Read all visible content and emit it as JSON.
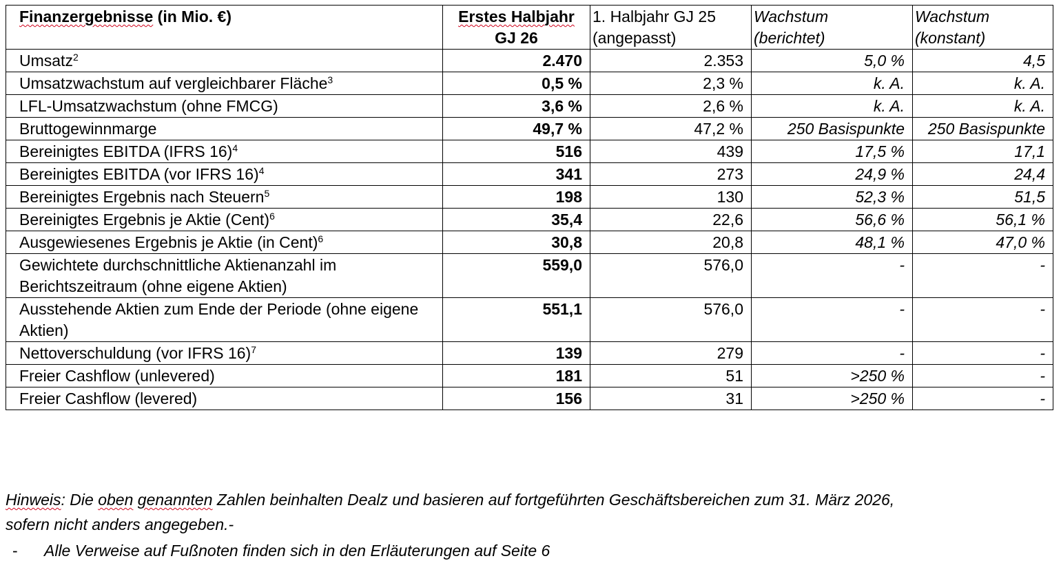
{
  "table": {
    "headers": [
      "Finanzergebnisse (in Mio. €)",
      "Erstes Halbjahr GJ 26",
      "1. Halbjahr GJ 25 (angepasst)",
      "Wachstum (berichtet)",
      "Wachstum (konstant)"
    ],
    "header_parts": {
      "col0_word": "Finanzergebnisse",
      "col0_rest": " (in Mio. €)",
      "col1_line1": "Erstes Halbjahr",
      "col1_line2": "GJ 26",
      "col2_line1": "1. Halbjahr GJ 25",
      "col2_line2": "(angepasst)",
      "col3_line1": "Wachstum",
      "col3_line2": "(berichtet)",
      "col4_line1": "Wachstum",
      "col4_line2": "(konstant)"
    },
    "rows": [
      {
        "label": "Umsatz",
        "sup": "2",
        "h1_26": "2.470",
        "h1_25": "2.353",
        "reported": "5,0 %",
        "constant": "4,5"
      },
      {
        "label": "Umsatzwachstum auf vergleichbarer Fläche",
        "sup": "3",
        "h1_26": "0,5 %",
        "h1_25": "2,3 %",
        "reported": "k. A.",
        "constant": "k. A."
      },
      {
        "label": "LFL-Umsatzwachstum (ohne FMCG)",
        "sup": "",
        "h1_26": "3,6 %",
        "h1_25": "2,6 %",
        "reported": "k. A.",
        "constant": "k. A."
      },
      {
        "label": "Bruttogewinnmarge",
        "sup": "",
        "h1_26": "49,7 %",
        "h1_25": "47,2 %",
        "reported": "250 Basispunkte",
        "constant": "250 Basispunkte"
      },
      {
        "label": "Bereinigtes EBITDA (IFRS 16)",
        "sup": "4",
        "h1_26": "516",
        "h1_25": "439",
        "reported": "17,5 %",
        "constant": "17,1"
      },
      {
        "label": "Bereinigtes EBITDA (vor IFRS 16)",
        "sup": "4",
        "h1_26": "341",
        "h1_25": "273",
        "reported": "24,9 %",
        "constant": "24,4"
      },
      {
        "label": "Bereinigtes Ergebnis nach Steuern",
        "sup": "5",
        "h1_26": "198",
        "h1_25": "130",
        "reported": "52,3 %",
        "constant": "51,5"
      },
      {
        "label": "Bereinigtes Ergebnis je Aktie (Cent)",
        "sup": "6",
        "h1_26": "35,4",
        "h1_25": "22,6",
        "reported": "56,6 %",
        "constant": "56,1 %"
      },
      {
        "label": "Ausgewiesenes Ergebnis je Aktie (in Cent)",
        "sup": "6",
        "h1_26": "30,8",
        "h1_25": "20,8",
        "reported": "48,1 %",
        "constant": "47,0 %"
      },
      {
        "label": "Gewichtete durchschnittliche Aktienanzahl im Berichtszeitraum (ohne eigene Aktien)",
        "sup": "",
        "h1_26": "559,0",
        "h1_25": "576,0",
        "reported": "-",
        "constant": "-"
      },
      {
        "label": "Ausstehende Aktien zum Ende der Periode (ohne eigene Aktien)",
        "sup": "",
        "h1_26": "551,1",
        "h1_25": "576,0",
        "reported": "-",
        "constant": "-"
      },
      {
        "label": "Nettoverschuldung (vor IFRS 16)",
        "sup": "7",
        "h1_26": "139",
        "h1_25": "279",
        "reported": "-",
        "constant": "-"
      },
      {
        "label": "Freier Cashflow (unlevered)",
        "sup": "",
        "h1_26": "181",
        "h1_25": "51",
        "reported": ">250 %",
        "constant": "-"
      },
      {
        "label": "Freier Cashflow (levered)",
        "sup": "",
        "h1_26": "156",
        "h1_25": "31",
        "reported": ">250 %",
        "constant": "-"
      }
    ]
  },
  "note": {
    "lead_word": "Hinweis",
    "colon": ": Die ",
    "word2": "oben",
    "space": " ",
    "word3": "genannten",
    "rest": " Zahlen beinhalten Dealz und basieren auf fortgeführten Geschäftsbereichen zum 31. März 2026,",
    "line2": "sofern nicht anders angegeben.-"
  },
  "bullet": {
    "dash": "-",
    "text": "Alle Verweise auf Fußnoten finden sich in den Erläuterungen auf Seite 6"
  },
  "colors": {
    "spellcheck_underline": "#d0021b"
  }
}
